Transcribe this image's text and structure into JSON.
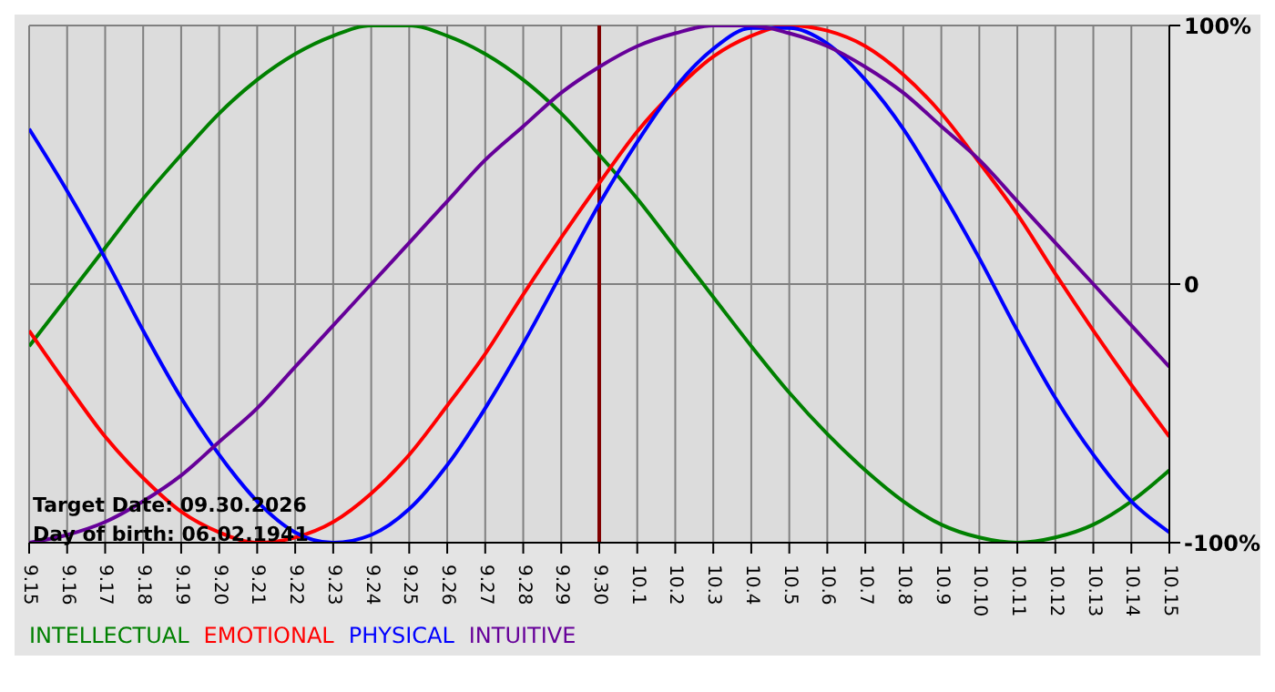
{
  "chart_data": {
    "type": "line",
    "categories": [
      "9.15",
      "9.16",
      "9.17",
      "9.18",
      "9.19",
      "9.20",
      "9.21",
      "9.22",
      "9.23",
      "9.24",
      "9.25",
      "9.26",
      "9.27",
      "9.28",
      "9.29",
      "9.30",
      "10.1",
      "10.2",
      "10.3",
      "10.4",
      "10.5",
      "10.6",
      "10.7",
      "10.8",
      "10.9",
      "10.10",
      "10.11",
      "10.12",
      "10.13",
      "10.14",
      "10.15"
    ],
    "series": [
      {
        "name": "INTELLECTUAL",
        "color": "#008000",
        "values": [
          -24,
          -5,
          14,
          33,
          50,
          66,
          79,
          89,
          96,
          100,
          100,
          96,
          89,
          79,
          66,
          50,
          33,
          14,
          -5,
          -24,
          -42,
          -58,
          -72,
          -84,
          -93,
          -98,
          -100,
          -98,
          -93,
          -84,
          -72
        ]
      },
      {
        "name": "EMOTIONAL",
        "color": "#ff0000",
        "values": [
          -18,
          -39,
          -59,
          -75,
          -88,
          -96,
          -100,
          -98,
          -92,
          -81,
          -66,
          -47,
          -27,
          -4,
          18,
          39,
          59,
          75,
          88,
          96,
          100,
          98,
          92,
          81,
          66,
          47,
          27,
          4,
          -18,
          -39,
          -59
        ]
      },
      {
        "name": "PHYSICAL",
        "color": "#0000ff",
        "values": [
          60,
          36,
          10,
          -18,
          -44,
          -66,
          -84,
          -96,
          -100,
          -97,
          -87,
          -70,
          -48,
          -23,
          4,
          31,
          55,
          76,
          91,
          99,
          99,
          93,
          79,
          60,
          36,
          10,
          -18,
          -44,
          -66,
          -84,
          -96
        ]
      },
      {
        "name": "INTUITIVE",
        "color": "#660099",
        "values": [
          -100,
          -97,
          -92,
          -84,
          -74,
          -61,
          -48,
          -32,
          -16,
          0,
          16,
          32,
          48,
          61,
          74,
          84,
          92,
          97,
          100,
          100,
          97,
          92,
          84,
          74,
          61,
          48,
          32,
          16,
          0,
          -16,
          -32
        ]
      }
    ],
    "ylim": [
      -100,
      100
    ],
    "yticks": [
      {
        "value": 100,
        "label": "100%"
      },
      0,
      {
        "value": -100,
        "label": "-100%"
      }
    ],
    "grid": true,
    "legend": "bottom",
    "marker": "none",
    "line_style": "solid",
    "ref_lines": [
      {
        "axis": "x",
        "value": "9.30",
        "color": "#800000"
      }
    ],
    "annotations": [
      "Target Date: 09.30.2026",
      "Day of birth: 06.02.1941"
    ]
  }
}
